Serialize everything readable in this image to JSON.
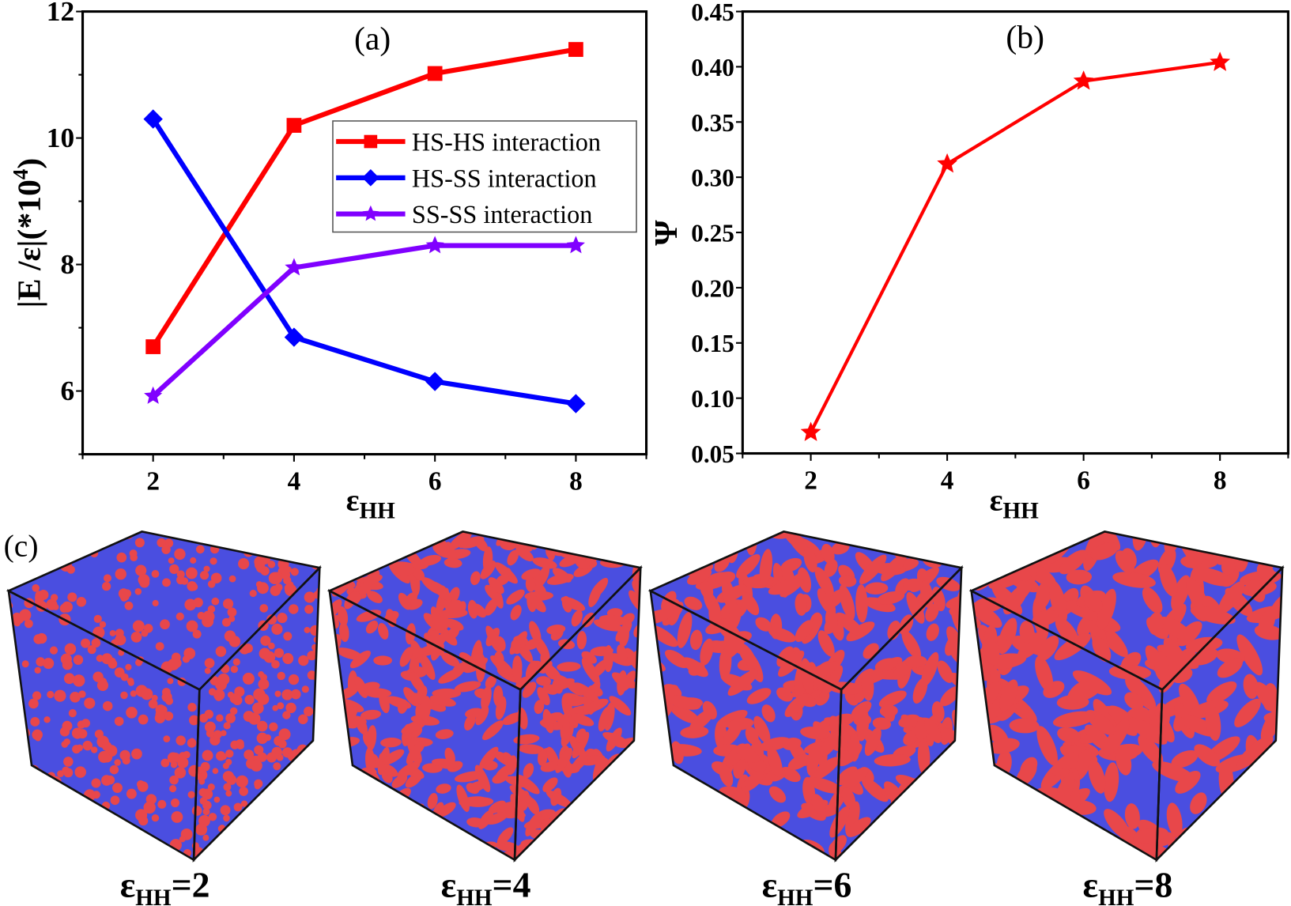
{
  "chart_data": [
    {
      "panel_label": "(a)",
      "type": "line",
      "xlabel": "ε",
      "xlabel_sub": "HH",
      "ylabel": "|E /ε|(*10",
      "ylabel_sup": "4",
      "ylabel_close": ")",
      "xlim": [
        1,
        9
      ],
      "ylim": [
        5,
        12
      ],
      "xticks": [
        "2",
        "4",
        "6",
        "8"
      ],
      "yticks": [
        "6",
        "8",
        "10",
        "12"
      ],
      "x": [
        2,
        4,
        6,
        8
      ],
      "legend_position": "upper-right",
      "series": [
        {
          "name": "HS-HS interaction",
          "values": [
            6.7,
            10.2,
            11.02,
            11.4
          ],
          "color": "#ff0000",
          "marker": "square"
        },
        {
          "name": "HS-SS interaction",
          "values": [
            10.3,
            6.85,
            6.15,
            5.8
          ],
          "color": "#0000ff",
          "marker": "diamond"
        },
        {
          "name": "SS-SS interaction",
          "values": [
            5.92,
            7.95,
            8.3,
            8.3
          ],
          "color": "#8000ff",
          "marker": "star"
        }
      ]
    },
    {
      "panel_label": "(b)",
      "type": "line",
      "xlabel": "ε",
      "xlabel_sub": "HH",
      "ylabel": "Ψ",
      "xlim": [
        1,
        9
      ],
      "ylim": [
        0.05,
        0.45
      ],
      "xticks": [
        "2",
        "4",
        "6",
        "8"
      ],
      "yticks": [
        "0.05",
        "0.10",
        "0.15",
        "0.20",
        "0.25",
        "0.30",
        "0.35",
        "0.40",
        "0.45"
      ],
      "x": [
        2,
        4,
        6,
        8
      ],
      "series": [
        {
          "values": [
            0.069,
            0.312,
            0.387,
            0.404
          ],
          "color": "#ff0000",
          "marker": "star"
        }
      ]
    }
  ],
  "panel_c": {
    "label": "(c)",
    "colors": {
      "red_phase": "#e8474a",
      "blue_phase": "#4a4ee0"
    },
    "snapshots": [
      {
        "prefix": "ε",
        "sub": "HH",
        "suffix": "=2",
        "domain_scale": 1
      },
      {
        "prefix": "ε",
        "sub": "HH",
        "suffix": "=4",
        "domain_scale": 2
      },
      {
        "prefix": "ε",
        "sub": "HH",
        "suffix": "=6",
        "domain_scale": 3
      },
      {
        "prefix": "ε",
        "sub": "HH",
        "suffix": "=8",
        "domain_scale": 4
      }
    ]
  }
}
